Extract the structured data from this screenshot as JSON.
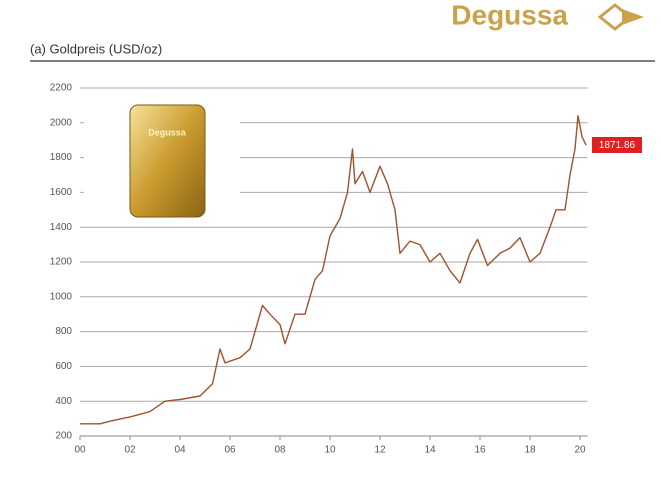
{
  "brand": "Degussa",
  "chart_data": {
    "type": "line",
    "title": "(a) Goldpreis (USD/oz)",
    "bar_label": "Degussa",
    "annotation": "1871.86",
    "x": [
      0,
      0.8,
      1.2,
      2,
      2.8,
      3.4,
      4,
      4.8,
      5.3,
      5.6,
      5.8,
      6.4,
      6.8,
      7.3,
      7.6,
      8,
      8.2,
      8.6,
      9,
      9.4,
      9.7,
      10,
      10.4,
      10.7,
      10.9,
      11,
      11.3,
      11.6,
      12,
      12.3,
      12.6,
      12.8,
      13.2,
      13.6,
      14,
      14.4,
      14.8,
      15.2,
      15.6,
      15.9,
      16.3,
      16.8,
      17.2,
      17.6,
      18,
      18.4,
      18.8,
      19.04,
      19.4,
      19.6,
      19.8,
      19.92,
      20.08,
      20.24
    ],
    "series": [
      {
        "name": "Goldpreis",
        "color": "#a0522d",
        "values": [
          270,
          270,
          285,
          310,
          340,
          400,
          410,
          430,
          500,
          700,
          620,
          650,
          700,
          950,
          900,
          840,
          730,
          900,
          900,
          1100,
          1150,
          1350,
          1450,
          1600,
          1850,
          1650,
          1720,
          1600,
          1750,
          1650,
          1500,
          1250,
          1320,
          1300,
          1200,
          1250,
          1150,
          1080,
          1250,
          1330,
          1180,
          1250,
          1280,
          1340,
          1200,
          1250,
          1400,
          1500,
          1500,
          1700,
          1850,
          2040,
          1920,
          1871.86
        ]
      }
    ],
    "xlim": [
      0,
      20.3
    ],
    "xticks": [
      {
        "value": 0,
        "label": "00"
      },
      {
        "value": 2,
        "label": "02"
      },
      {
        "value": 4,
        "label": "04"
      },
      {
        "value": 6,
        "label": "06"
      },
      {
        "value": 8,
        "label": "08"
      },
      10,
      12,
      14,
      16,
      18,
      20
    ],
    "ylim": [
      200,
      2200
    ],
    "yticks": [
      200,
      400,
      600,
      800,
      1000,
      1200,
      1400,
      1600,
      1800,
      2000,
      2200
    ],
    "grid": true
  }
}
